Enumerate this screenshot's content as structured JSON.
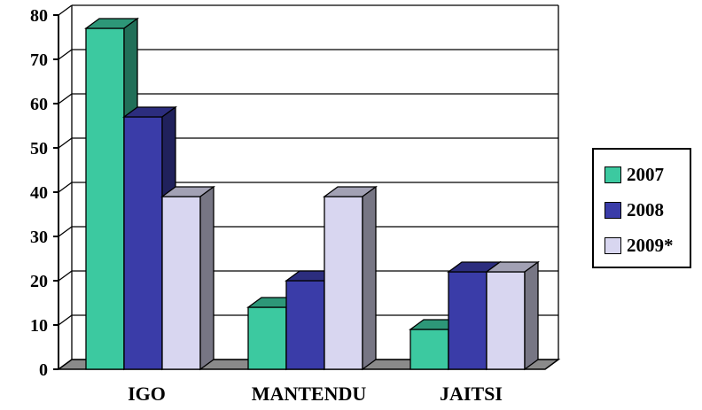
{
  "chart_data": {
    "type": "bar",
    "style": "3d-clustered",
    "title": "",
    "xlabel": "",
    "ylabel": "",
    "categories": [
      "IGO",
      "MANTENDU",
      "JAITSI"
    ],
    "ylim": [
      0,
      80
    ],
    "yticks": [
      0,
      10,
      20,
      30,
      40,
      50,
      60,
      70,
      80
    ],
    "grid": true,
    "legend_position": "right",
    "series": [
      {
        "name": "2007",
        "values": [
          77,
          14,
          9
        ],
        "color": "#3cc9a0"
      },
      {
        "name": "2008",
        "values": [
          57,
          20,
          22
        ],
        "color": "#3a3ca8"
      },
      {
        "name": "2009*",
        "values": [
          39,
          39,
          22
        ],
        "color": "#d8d6f0"
      }
    ]
  }
}
